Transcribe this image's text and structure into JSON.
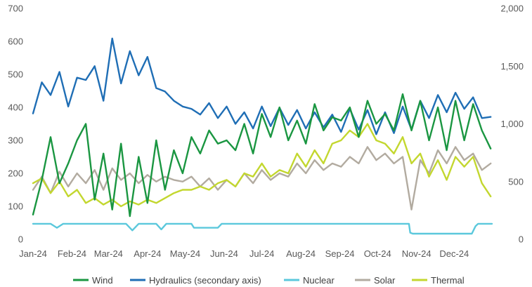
{
  "chart_data": {
    "type": "line",
    "title": "",
    "xlabel": "",
    "ylabel": "",
    "y2label": "",
    "x_ticks": [
      "Jan-24",
      "Feb-24",
      "Mar-24",
      "Apr-24",
      "May-24",
      "Jun-24",
      "Jul-24",
      "Aug-24",
      "Sep-24",
      "Oct-24",
      "Nov-24",
      "Dec-24"
    ],
    "x_range": [
      "2024-01-01",
      "2024-12-31"
    ],
    "ylim": [
      0,
      700
    ],
    "y_ticks": [
      "0",
      "100",
      "200",
      "300",
      "400",
      "500",
      "600",
      "700"
    ],
    "y2lim": [
      0,
      2000
    ],
    "y2_ticks": [
      "0",
      "500",
      "1,000",
      "1,500",
      "2,000"
    ],
    "grid": false,
    "legend_position": "bottom",
    "series": [
      {
        "name": "Wind",
        "color": "#1a9641",
        "axis": "primary",
        "dates": [
          "2024-01-01",
          "2024-01-08",
          "2024-01-15",
          "2024-01-22",
          "2024-01-29",
          "2024-02-05",
          "2024-02-12",
          "2024-02-19",
          "2024-02-26",
          "2024-03-04",
          "2024-03-11",
          "2024-03-18",
          "2024-03-25",
          "2024-04-01",
          "2024-04-08",
          "2024-04-15",
          "2024-04-22",
          "2024-04-29",
          "2024-05-06",
          "2024-05-13",
          "2024-05-20",
          "2024-05-27",
          "2024-06-03",
          "2024-06-10",
          "2024-06-17",
          "2024-06-24",
          "2024-07-01",
          "2024-07-08",
          "2024-07-15",
          "2024-07-22",
          "2024-07-29",
          "2024-08-05",
          "2024-08-12",
          "2024-08-19",
          "2024-08-26",
          "2024-09-02",
          "2024-09-09",
          "2024-09-16",
          "2024-09-23",
          "2024-09-30",
          "2024-10-07",
          "2024-10-14",
          "2024-10-21",
          "2024-10-28",
          "2024-11-04",
          "2024-11-11",
          "2024-11-18",
          "2024-11-25",
          "2024-12-02",
          "2024-12-09",
          "2024-12-16",
          "2024-12-23",
          "2024-12-30"
        ],
        "values": [
          75,
          180,
          310,
          170,
          230,
          300,
          350,
          120,
          260,
          90,
          290,
          70,
          250,
          110,
          300,
          150,
          270,
          200,
          310,
          260,
          330,
          290,
          300,
          270,
          350,
          260,
          380,
          310,
          400,
          300,
          360,
          290,
          410,
          330,
          370,
          360,
          400,
          310,
          420,
          350,
          380,
          330,
          440,
          330,
          420,
          300,
          400,
          270,
          420,
          300,
          410,
          330,
          275
        ]
      },
      {
        "name": "Hydraulics (secondary axis)",
        "color": "#1f6eb5",
        "axis": "secondary",
        "dates": [
          "2024-01-01",
          "2024-01-08",
          "2024-01-15",
          "2024-01-22",
          "2024-01-29",
          "2024-02-05",
          "2024-02-12",
          "2024-02-19",
          "2024-02-26",
          "2024-03-04",
          "2024-03-11",
          "2024-03-18",
          "2024-03-25",
          "2024-04-01",
          "2024-04-08",
          "2024-04-15",
          "2024-04-22",
          "2024-04-29",
          "2024-05-06",
          "2024-05-13",
          "2024-05-20",
          "2024-05-27",
          "2024-06-03",
          "2024-06-10",
          "2024-06-17",
          "2024-06-24",
          "2024-07-01",
          "2024-07-08",
          "2024-07-15",
          "2024-07-22",
          "2024-07-29",
          "2024-08-05",
          "2024-08-12",
          "2024-08-19",
          "2024-08-26",
          "2024-09-02",
          "2024-09-09",
          "2024-09-16",
          "2024-09-23",
          "2024-09-30",
          "2024-10-07",
          "2024-10-14",
          "2024-10-21",
          "2024-10-28",
          "2024-11-04",
          "2024-11-11",
          "2024-11-18",
          "2024-11-25",
          "2024-12-02",
          "2024-12-09",
          "2024-12-16",
          "2024-12-23",
          "2024-12-30"
        ],
        "values": [
          1090,
          1360,
          1250,
          1450,
          1150,
          1400,
          1380,
          1500,
          1200,
          1740,
          1350,
          1630,
          1420,
          1580,
          1310,
          1280,
          1200,
          1150,
          1130,
          1080,
          1180,
          1050,
          1150,
          1000,
          1100,
          960,
          1150,
          980,
          1140,
          990,
          1120,
          960,
          1100,
          970,
          1080,
          930,
          1130,
          950,
          1120,
          910,
          1100,
          920,
          1150,
          950,
          1200,
          1050,
          1250,
          1100,
          1270,
          1130,
          1230,
          1050,
          1060
        ]
      },
      {
        "name": "Nuclear",
        "color": "#5bc8dc",
        "axis": "primary",
        "dates": [
          "2024-01-01",
          "2024-01-15",
          "2024-01-20",
          "2024-01-25",
          "2024-02-15",
          "2024-03-01",
          "2024-03-15",
          "2024-03-20",
          "2024-03-25",
          "2024-04-08",
          "2024-04-12",
          "2024-04-16",
          "2024-05-06",
          "2024-05-08",
          "2024-05-10",
          "2024-05-27",
          "2024-05-30",
          "2024-06-15",
          "2024-07-15",
          "2024-08-15",
          "2024-09-15",
          "2024-10-15",
          "2024-10-26",
          "2024-10-27",
          "2024-10-29",
          "2024-11-15",
          "2024-12-01",
          "2024-12-15",
          "2024-12-18",
          "2024-12-20",
          "2024-12-31"
        ],
        "values": [
          47,
          47,
          35,
          47,
          47,
          47,
          47,
          27,
          47,
          47,
          30,
          47,
          47,
          35,
          35,
          35,
          47,
          47,
          47,
          47,
          47,
          47,
          47,
          20,
          17,
          17,
          17,
          17,
          40,
          47,
          47
        ]
      },
      {
        "name": "Solar",
        "color": "#b2aba0",
        "axis": "primary",
        "dates": [
          "2024-01-01",
          "2024-01-08",
          "2024-01-15",
          "2024-01-22",
          "2024-01-29",
          "2024-02-05",
          "2024-02-12",
          "2024-02-19",
          "2024-02-26",
          "2024-03-04",
          "2024-03-11",
          "2024-03-18",
          "2024-03-25",
          "2024-04-01",
          "2024-04-08",
          "2024-04-15",
          "2024-04-22",
          "2024-04-29",
          "2024-05-06",
          "2024-05-13",
          "2024-05-20",
          "2024-05-27",
          "2024-06-03",
          "2024-06-10",
          "2024-06-17",
          "2024-06-24",
          "2024-07-01",
          "2024-07-08",
          "2024-07-15",
          "2024-07-22",
          "2024-07-29",
          "2024-08-05",
          "2024-08-12",
          "2024-08-19",
          "2024-08-26",
          "2024-09-02",
          "2024-09-09",
          "2024-09-16",
          "2024-09-23",
          "2024-09-30",
          "2024-10-07",
          "2024-10-14",
          "2024-10-21",
          "2024-10-28",
          "2024-11-04",
          "2024-11-11",
          "2024-11-18",
          "2024-11-25",
          "2024-12-02",
          "2024-12-09",
          "2024-12-16",
          "2024-12-23",
          "2024-12-30"
        ],
        "values": [
          150,
          190,
          140,
          205,
          160,
          200,
          170,
          210,
          150,
          215,
          180,
          200,
          170,
          195,
          175,
          190,
          180,
          175,
          190,
          160,
          185,
          150,
          180,
          160,
          200,
          170,
          210,
          180,
          200,
          190,
          230,
          200,
          240,
          210,
          230,
          220,
          250,
          230,
          280,
          240,
          260,
          230,
          250,
          90,
          240,
          200,
          270,
          230,
          280,
          240,
          260,
          210,
          230
        ]
      },
      {
        "name": "Thermal",
        "color": "#c3d72f",
        "axis": "primary",
        "dates": [
          "2024-01-01",
          "2024-01-08",
          "2024-01-15",
          "2024-01-22",
          "2024-01-29",
          "2024-02-05",
          "2024-02-12",
          "2024-02-19",
          "2024-02-26",
          "2024-03-04",
          "2024-03-11",
          "2024-03-18",
          "2024-03-25",
          "2024-04-01",
          "2024-04-08",
          "2024-04-15",
          "2024-04-22",
          "2024-04-29",
          "2024-05-06",
          "2024-05-13",
          "2024-05-20",
          "2024-05-27",
          "2024-06-03",
          "2024-06-10",
          "2024-06-17",
          "2024-06-24",
          "2024-07-01",
          "2024-07-08",
          "2024-07-15",
          "2024-07-22",
          "2024-07-29",
          "2024-08-05",
          "2024-08-12",
          "2024-08-19",
          "2024-08-26",
          "2024-09-02",
          "2024-09-09",
          "2024-09-16",
          "2024-09-23",
          "2024-09-30",
          "2024-10-07",
          "2024-10-14",
          "2024-10-21",
          "2024-10-28",
          "2024-11-04",
          "2024-11-11",
          "2024-11-18",
          "2024-11-25",
          "2024-12-02",
          "2024-12-09",
          "2024-12-16",
          "2024-12-23",
          "2024-12-30"
        ],
        "values": [
          170,
          185,
          140,
          175,
          130,
          150,
          110,
          125,
          105,
          120,
          100,
          115,
          105,
          120,
          110,
          125,
          140,
          150,
          150,
          160,
          150,
          170,
          180,
          160,
          200,
          190,
          230,
          190,
          210,
          200,
          260,
          220,
          270,
          230,
          290,
          300,
          330,
          310,
          350,
          300,
          290,
          260,
          310,
          230,
          260,
          190,
          240,
          180,
          250,
          220,
          250,
          170,
          130
        ]
      }
    ]
  }
}
